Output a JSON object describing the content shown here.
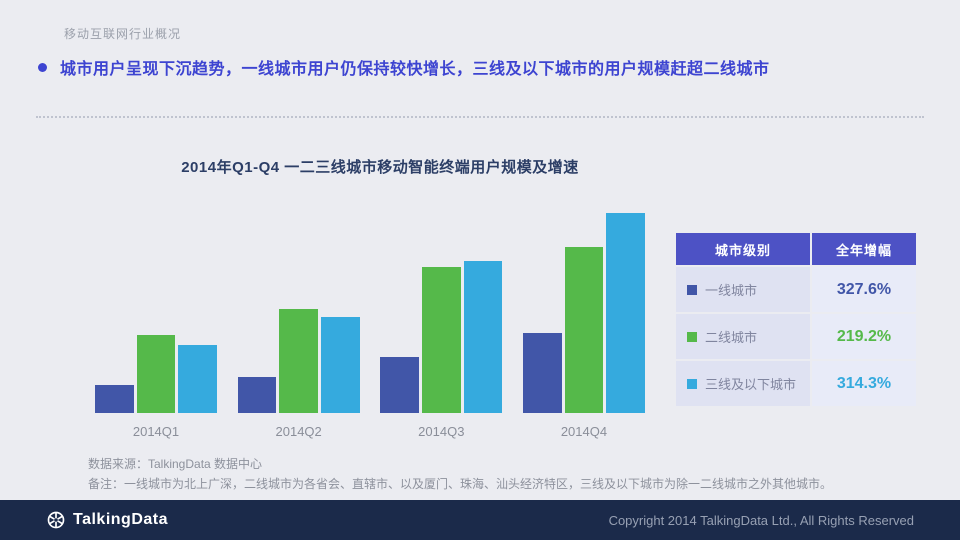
{
  "page": {
    "eyebrow": "移动互联网行业概况",
    "headline": "城市用户呈现下沉趋势，一线城市用户仍保持较快增长，三线及以下城市的用户规模赶超二线城市"
  },
  "chart_data": {
    "type": "bar",
    "title": "2014年Q1-Q4 一二三线城市移动智能终端用户规模及增速",
    "categories": [
      "2014Q1",
      "2014Q2",
      "2014Q3",
      "2014Q4"
    ],
    "series": [
      {
        "name": "一线城市",
        "color": "#4156a8",
        "values": [
          14,
          18,
          28,
          40
        ]
      },
      {
        "name": "二线城市",
        "color": "#55b94a",
        "values": [
          39,
          52,
          73,
          83
        ]
      },
      {
        "name": "三线及以下城市",
        "color": "#35aade",
        "values": [
          34,
          48,
          76,
          100
        ]
      }
    ],
    "xlabel": "",
    "ylabel": "",
    "ylim": [
      0,
      100
    ],
    "grid": false,
    "legend_position": "table-right"
  },
  "table": {
    "headers": [
      "城市级别",
      "全年增幅"
    ],
    "rows": [
      {
        "label": "一线城市",
        "value": "327.6%",
        "color": "#4156a8"
      },
      {
        "label": "二线城市",
        "value": "219.2%",
        "color": "#55b94a"
      },
      {
        "label": "三线及以下城市",
        "value": "314.3%",
        "color": "#35aade"
      }
    ]
  },
  "notes": {
    "source": "数据来源：TalkingData 数据中心",
    "remark": "备注：一线城市为北上广深，二线城市为各省会、直辖市、以及厦门、珠海、汕头经济特区，三线及以下城市为除一二线城市之外其他城市。"
  },
  "footer": {
    "logo": "TalkingData",
    "copyright": "Copyright 2014 TalkingData Ltd., All Rights Reserved"
  },
  "colors": {
    "accent": "#3d44d1",
    "chart_title": "#2c3e66",
    "table_header_bg": "#4d52c5",
    "footer_bg": "#1b2a4a"
  }
}
